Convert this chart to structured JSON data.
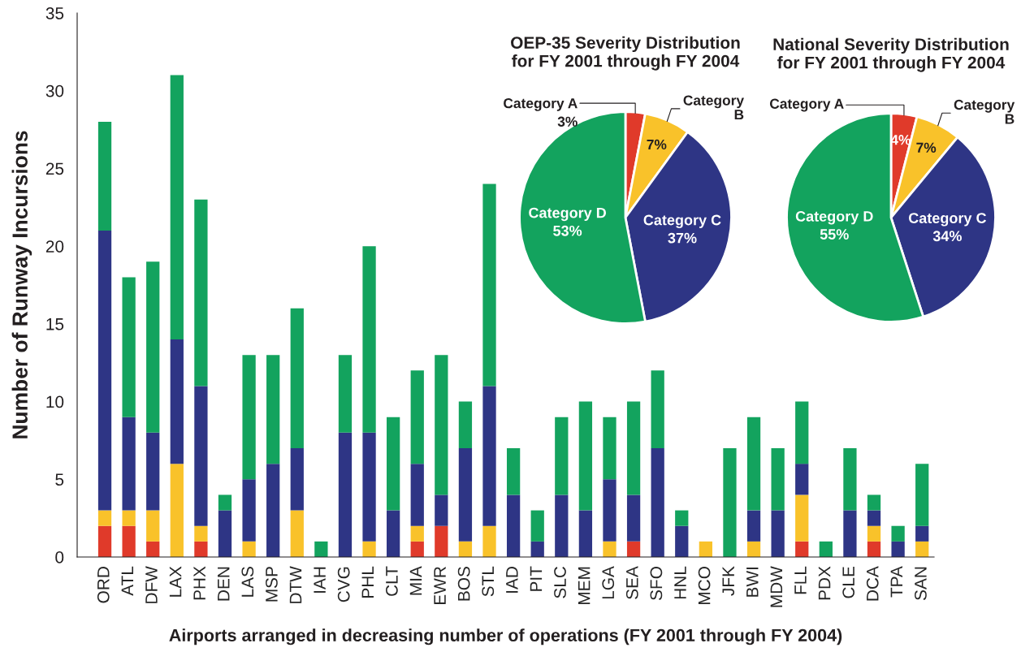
{
  "chart_data": [
    {
      "type": "bar",
      "stacked": true,
      "xlabel": "Airports arranged in decreasing number of operations (FY 2001 through FY 2004)",
      "ylabel": "Number of Runway Incursions",
      "categories": [
        "ORD",
        "ATL",
        "DFW",
        "LAX",
        "PHX",
        "DEN",
        "LAS",
        "MSP",
        "DTW",
        "IAH",
        "CVG",
        "PHL",
        "CLT",
        "MIA",
        "EWR",
        "BOS",
        "STL",
        "IAD",
        "PIT",
        "SLC",
        "MEM",
        "LGA",
        "SEA",
        "SFO",
        "HNL",
        "MCO",
        "JFK",
        "BWI",
        "MDW",
        "FLL",
        "PDX",
        "CLE",
        "DCA",
        "TPA",
        "SAN"
      ],
      "series": [
        {
          "color": "#e03a2a",
          "values": [
            2,
            2,
            1,
            0,
            1,
            0,
            0,
            0,
            0,
            0,
            0,
            0,
            0,
            1,
            2,
            0,
            0,
            0,
            0,
            0,
            0,
            0,
            1,
            0,
            0,
            0,
            0,
            0,
            0,
            1,
            0,
            0,
            1,
            0,
            0
          ]
        },
        {
          "color": "#f9c22a",
          "values": [
            1,
            1,
            2,
            6,
            1,
            0,
            1,
            0,
            3,
            0,
            0,
            1,
            0,
            1,
            0,
            1,
            2,
            0,
            0,
            0,
            0,
            1,
            0,
            0,
            0,
            1,
            0,
            1,
            0,
            3,
            0,
            0,
            1,
            0,
            1
          ]
        },
        {
          "color": "#2e3585",
          "values": [
            18,
            6,
            5,
            8,
            9,
            3,
            4,
            6,
            4,
            0,
            8,
            7,
            3,
            4,
            2,
            6,
            9,
            4,
            1,
            4,
            3,
            4,
            3,
            7,
            2,
            0,
            0,
            2,
            3,
            2,
            0,
            3,
            1,
            1,
            1
          ]
        },
        {
          "color": "#13a35e",
          "values": [
            7,
            9,
            11,
            17,
            12,
            1,
            8,
            7,
            9,
            1,
            5,
            12,
            6,
            6,
            9,
            3,
            13,
            3,
            2,
            5,
            7,
            4,
            6,
            5,
            1,
            0,
            7,
            6,
            4,
            4,
            1,
            4,
            1,
            1,
            4
          ]
        }
      ],
      "ylim": [
        0,
        35
      ],
      "yticks": [
        0,
        5,
        10,
        15,
        20,
        25,
        30,
        35
      ],
      "grid": false
    },
    {
      "type": "pie",
      "title": "OEP-35 Severity Distribution\nfor FY 2001 through FY 2004",
      "categories": [
        "Category A",
        "Category B",
        "Category C",
        "Category D"
      ],
      "values": [
        3,
        7,
        37,
        53
      ],
      "value_labels": [
        "3%",
        "7%",
        "37%",
        "53%"
      ],
      "colors": [
        "#e03a2a",
        "#f9c22a",
        "#2e3585",
        "#13a35e"
      ]
    },
    {
      "type": "pie",
      "title": "National Severity Distribution\nfor FY 2001 through FY 2004",
      "categories": [
        "Category A",
        "Category B",
        "Category C",
        "Category D"
      ],
      "values": [
        4,
        7,
        34,
        55
      ],
      "value_labels": [
        "4%",
        "7%",
        "34%",
        "55%"
      ],
      "colors": [
        "#e03a2a",
        "#f9c22a",
        "#2e3585",
        "#13a35e"
      ]
    }
  ]
}
